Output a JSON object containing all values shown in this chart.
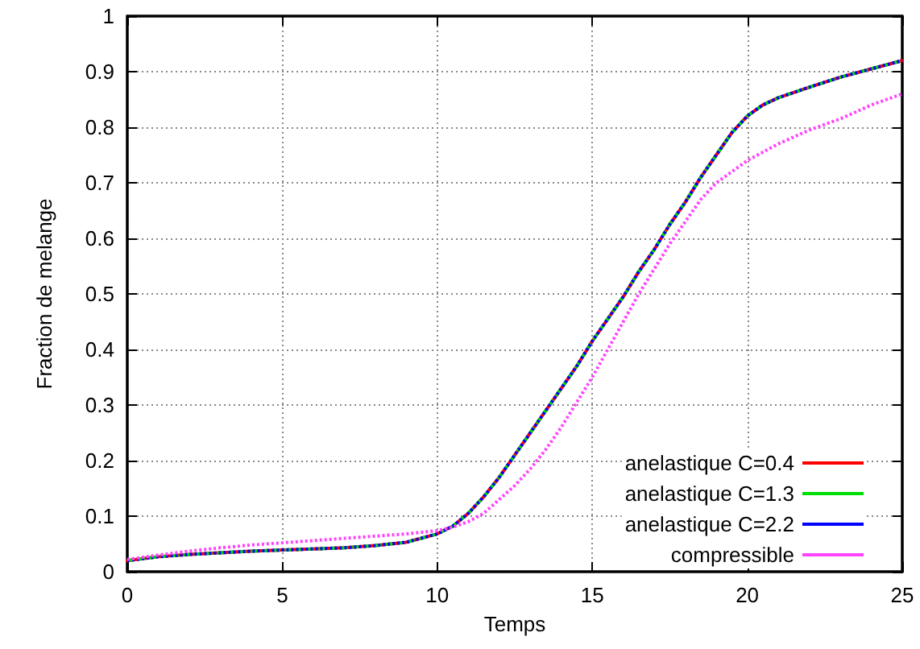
{
  "chart_data": {
    "type": "line",
    "xlabel": "Temps",
    "ylabel": "Fraction de melange",
    "x": [
      0,
      1,
      2,
      3,
      4,
      5,
      6,
      7,
      8,
      9,
      10,
      10.5,
      11,
      11.5,
      12,
      12.5,
      13,
      13.5,
      14,
      14.5,
      15,
      15.5,
      16,
      16.5,
      17,
      17.5,
      18,
      18.5,
      19,
      19.5,
      20,
      20.5,
      21,
      22,
      23,
      24,
      25
    ],
    "series": [
      {
        "name": "anelastique C=0.4",
        "color": "#ff0000",
        "line_style": "solid",
        "values": [
          0.02,
          0.027,
          0.031,
          0.034,
          0.037,
          0.039,
          0.041,
          0.043,
          0.047,
          0.053,
          0.068,
          0.082,
          0.105,
          0.135,
          0.17,
          0.21,
          0.25,
          0.29,
          0.33,
          0.37,
          0.415,
          0.455,
          0.495,
          0.54,
          0.58,
          0.625,
          0.665,
          0.71,
          0.75,
          0.79,
          0.82,
          0.84,
          0.853,
          0.872,
          0.89,
          0.905,
          0.92
        ]
      },
      {
        "name": "anelastique C=1.3",
        "color": "#00dd00",
        "line_style": "dashed",
        "values": [
          0.02,
          0.027,
          0.031,
          0.034,
          0.037,
          0.039,
          0.041,
          0.043,
          0.047,
          0.053,
          0.068,
          0.082,
          0.105,
          0.135,
          0.17,
          0.21,
          0.25,
          0.29,
          0.33,
          0.37,
          0.415,
          0.455,
          0.495,
          0.54,
          0.58,
          0.625,
          0.665,
          0.71,
          0.75,
          0.79,
          0.82,
          0.84,
          0.853,
          0.872,
          0.89,
          0.905,
          0.92
        ]
      },
      {
        "name": "anelastique C=2.2",
        "color": "#0000ff",
        "line_style": "dotted",
        "values": [
          0.02,
          0.027,
          0.031,
          0.034,
          0.037,
          0.039,
          0.041,
          0.043,
          0.047,
          0.053,
          0.068,
          0.082,
          0.105,
          0.135,
          0.17,
          0.21,
          0.25,
          0.29,
          0.33,
          0.37,
          0.415,
          0.455,
          0.495,
          0.54,
          0.58,
          0.625,
          0.665,
          0.71,
          0.75,
          0.79,
          0.82,
          0.84,
          0.853,
          0.872,
          0.89,
          0.905,
          0.92
        ]
      },
      {
        "name": "compressible",
        "color": "#ff44ff",
        "line_style": "dotted",
        "values": [
          0.022,
          0.03,
          0.037,
          0.043,
          0.048,
          0.052,
          0.056,
          0.06,
          0.064,
          0.068,
          0.074,
          0.08,
          0.09,
          0.105,
          0.13,
          0.155,
          0.185,
          0.22,
          0.26,
          0.305,
          0.35,
          0.4,
          0.45,
          0.5,
          0.545,
          0.59,
          0.63,
          0.67,
          0.7,
          0.72,
          0.74,
          0.755,
          0.77,
          0.795,
          0.815,
          0.84,
          0.86
        ]
      }
    ],
    "xlim": [
      0,
      25
    ],
    "xticks": [
      0,
      5,
      10,
      15,
      20,
      25
    ],
    "ylim": [
      0,
      1
    ],
    "yticks": [
      0,
      0.1,
      0.2,
      0.3,
      0.4,
      0.5,
      0.6,
      0.7,
      0.8,
      0.9,
      1
    ],
    "grid": true,
    "legend": "bottom right",
    "marker": "none"
  }
}
